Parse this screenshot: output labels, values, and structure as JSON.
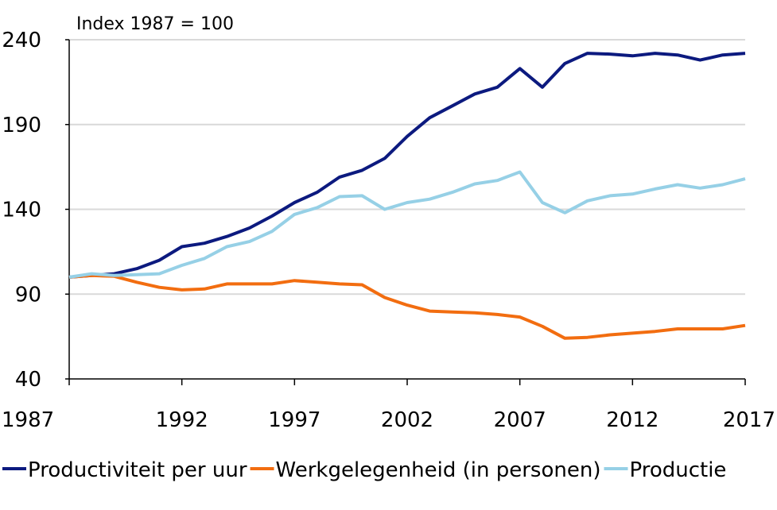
{
  "chart_data": {
    "type": "line",
    "title": "Index 1987 = 100",
    "xlabel": "",
    "ylabel": "",
    "xlim": [
      1987,
      2017
    ],
    "ylim": [
      40,
      240
    ],
    "x_ticks": [
      1987,
      1992,
      1997,
      2002,
      2007,
      2012,
      2017
    ],
    "y_ticks": [
      40,
      90,
      140,
      190,
      240
    ],
    "grid": "horizontal",
    "legend_position": "bottom",
    "x": [
      1987,
      1988,
      1989,
      1990,
      1991,
      1992,
      1993,
      1994,
      1995,
      1996,
      1997,
      1998,
      1999,
      2000,
      2001,
      2002,
      2003,
      2004,
      2005,
      2006,
      2007,
      2008,
      2009,
      2010,
      2011,
      2012,
      2013,
      2014,
      2015,
      2016,
      2017
    ],
    "series": [
      {
        "name": "Productiviteit per uur",
        "color": "#0c1a7f",
        "values": [
          100,
          101,
          102,
          105,
          110,
          118,
          120,
          124,
          129,
          136,
          144,
          150,
          159,
          163,
          170,
          183,
          194,
          201,
          208,
          212,
          223,
          212,
          226,
          232,
          231.5,
          230.5,
          232,
          231,
          228,
          231,
          232
        ]
      },
      {
        "name": "Werkgelegenheid (in personen)",
        "color": "#f26d10",
        "values": [
          100,
          101,
          100.5,
          97,
          94,
          92.5,
          93,
          96,
          96,
          96,
          98,
          97,
          96,
          95.5,
          88,
          83.5,
          80,
          79.5,
          79,
          78,
          76.5,
          71,
          64,
          64.5,
          66,
          67,
          68,
          69.5,
          69.5,
          69.5,
          71.5
        ]
      },
      {
        "name": "Productie",
        "color": "#96d0e6",
        "values": [
          100,
          102,
          101,
          101.5,
          102,
          107,
          111,
          118,
          121,
          127,
          137,
          141,
          147.5,
          148,
          140,
          144,
          146,
          150,
          155,
          157,
          162,
          144,
          138,
          145,
          148,
          149,
          152,
          154.5,
          152.5,
          154.5,
          158
        ]
      }
    ]
  }
}
